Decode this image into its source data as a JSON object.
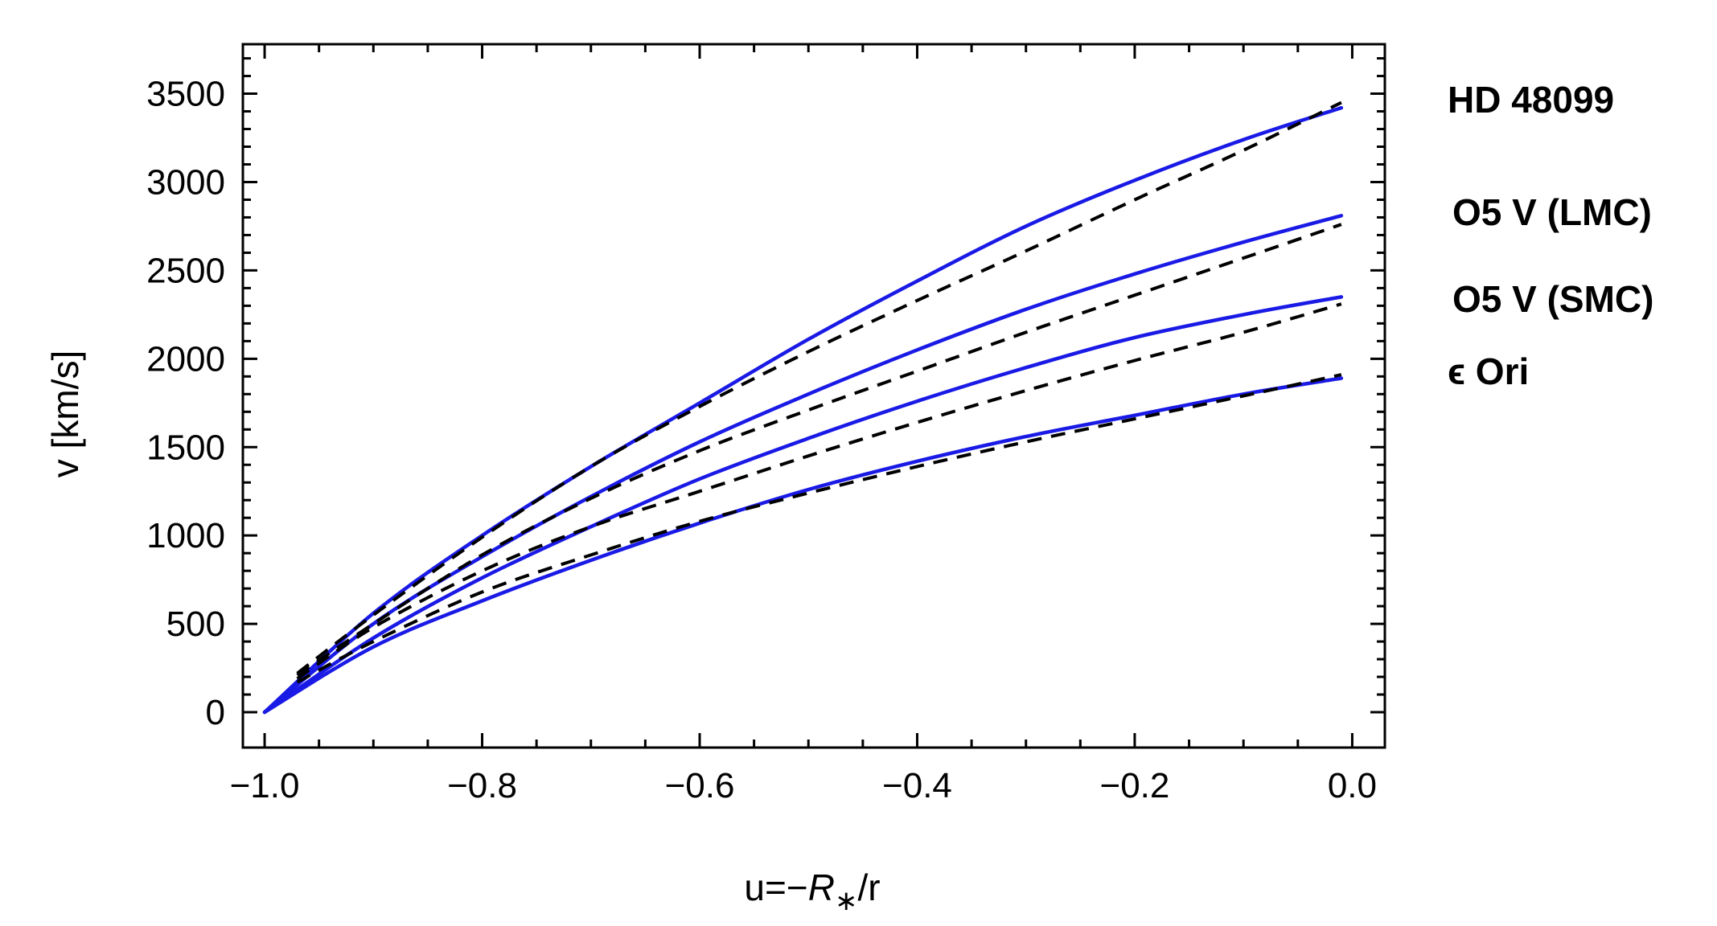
{
  "chart_data": {
    "type": "line",
    "xlabel": {
      "prefix": "u=−",
      "italic": "R",
      "subscript": "∗",
      "suffix": "/r"
    },
    "ylabel": "v  [km/s]",
    "xlim": [
      -1.02,
      0.03
    ],
    "ylim": [
      -200,
      3780
    ],
    "x_ticks": [
      -1.0,
      -0.8,
      -0.6,
      -0.4,
      -0.2,
      0.0
    ],
    "x_tick_labels": [
      "−1.0",
      "−0.8",
      "−0.6",
      "−0.4",
      "−0.2",
      "0.0"
    ],
    "y_ticks": [
      0,
      500,
      1000,
      1500,
      2000,
      2500,
      3000,
      3500
    ],
    "y_tick_labels": [
      "0",
      "500",
      "1000",
      "1500",
      "2000",
      "2500",
      "3000",
      "3500"
    ],
    "grid": false,
    "series": [
      {
        "name": "HD 48099",
        "color": "#1a1ae6",
        "solid": {
          "x": [
            -1.0,
            -0.9,
            -0.8,
            -0.7,
            -0.6,
            -0.5,
            -0.4,
            -0.3,
            -0.2,
            -0.1,
            -0.01
          ],
          "y": [
            0,
            560,
            1000,
            1390,
            1750,
            2110,
            2440,
            2750,
            3010,
            3240,
            3420
          ]
        },
        "dashed": {
          "x": [
            -0.97,
            -0.9,
            -0.8,
            -0.7,
            -0.6,
            -0.5,
            -0.4,
            -0.3,
            -0.2,
            -0.1,
            -0.01
          ],
          "y": [
            220,
            550,
            990,
            1390,
            1730,
            2040,
            2330,
            2610,
            2900,
            3180,
            3450
          ]
        }
      },
      {
        "name": "O5 V (LMC)",
        "color": "#1a1ae6",
        "solid": {
          "x": [
            -1.0,
            -0.9,
            -0.8,
            -0.7,
            -0.6,
            -0.5,
            -0.4,
            -0.3,
            -0.2,
            -0.1,
            -0.01
          ],
          "y": [
            0,
            500,
            880,
            1220,
            1530,
            1800,
            2050,
            2280,
            2480,
            2660,
            2810
          ]
        },
        "dashed": {
          "x": [
            -0.97,
            -0.9,
            -0.8,
            -0.7,
            -0.6,
            -0.5,
            -0.4,
            -0.3,
            -0.2,
            -0.1,
            -0.01
          ],
          "y": [
            210,
            500,
            890,
            1210,
            1480,
            1710,
            1930,
            2150,
            2360,
            2570,
            2760
          ]
        }
      },
      {
        "name": "O5 V (SMC)",
        "color": "#1a1ae6",
        "solid": {
          "x": [
            -1.0,
            -0.9,
            -0.8,
            -0.7,
            -0.6,
            -0.5,
            -0.4,
            -0.3,
            -0.2,
            -0.1,
            -0.01
          ],
          "y": [
            0,
            420,
            760,
            1050,
            1320,
            1550,
            1760,
            1950,
            2120,
            2250,
            2350
          ]
        },
        "dashed": {
          "x": [
            -0.97,
            -0.9,
            -0.8,
            -0.7,
            -0.6,
            -0.5,
            -0.4,
            -0.3,
            -0.2,
            -0.1,
            -0.01
          ],
          "y": [
            190,
            480,
            800,
            1050,
            1250,
            1450,
            1640,
            1820,
            1990,
            2150,
            2310
          ]
        }
      },
      {
        "name": "ϵ Ori",
        "color": "#1a1ae6",
        "solid": {
          "x": [
            -1.0,
            -0.9,
            -0.8,
            -0.7,
            -0.6,
            -0.5,
            -0.4,
            -0.3,
            -0.2,
            -0.1,
            -0.01
          ],
          "y": [
            0,
            370,
            630,
            860,
            1070,
            1260,
            1420,
            1560,
            1680,
            1800,
            1890
          ]
        },
        "dashed": {
          "x": [
            -0.97,
            -0.9,
            -0.8,
            -0.7,
            -0.6,
            -0.5,
            -0.4,
            -0.3,
            -0.2,
            -0.1,
            -0.01
          ],
          "y": [
            170,
            400,
            680,
            890,
            1080,
            1240,
            1390,
            1530,
            1660,
            1790,
            1910
          ]
        }
      }
    ],
    "dashed_color": "#000000"
  }
}
